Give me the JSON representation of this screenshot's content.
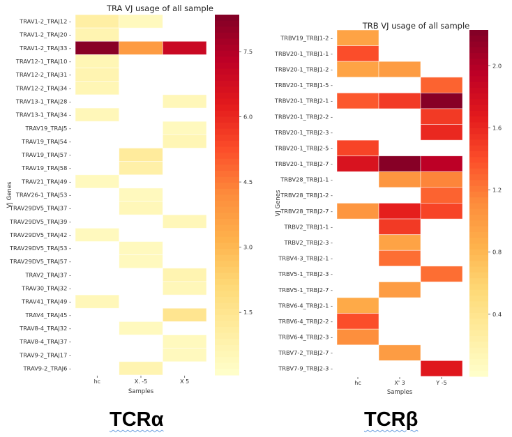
{
  "chart_data": [
    {
      "type": "heatmap",
      "title": "TRA VJ usage of all sample",
      "xlabel": "Samples",
      "ylabel": "VJ Genes",
      "colormap": "YlOrRd",
      "color_range": [
        0.06,
        8.35
      ],
      "colorbar_ticks": [
        1.5,
        3.0,
        4.5,
        6.0,
        7.5
      ],
      "colorbar_tick_labels": [
        "1.5",
        "3.0",
        "4.5",
        "6.0",
        "7.5"
      ],
      "columns": [
        "hc",
        "X.      -5",
        "X       5"
      ],
      "rows": [
        "TRAV1-2_TRAJ12",
        "TRAV1-2_TRAJ20",
        "TRAV1-2_TRAJ33",
        "TRAV12-1_TRAJ10",
        "TRAV12-2_TRAJ31",
        "TRAV12-2_TRAJ34",
        "TRAV13-1_TRAJ28",
        "TRAV13-1_TRAJ34",
        "TRAV19_TRAJ5",
        "TRAV19_TRAJ54",
        "TRAV19_TRAJ57",
        "TRAV19_TRAJ58",
        "TRAV21_TRAJ49",
        "TRAV26-1_TRAJ53",
        "TRAV29DV5_TRAJ37",
        "TRAV29DV5_TRAJ39",
        "TRAV29DV5_TRAJ42",
        "TRAV29DV5_TRAJ53",
        "TRAV29DV5_TRAJ57",
        "TRAV2_TRAJ37",
        "TRAV30_TRAJ32",
        "TRAV41_TRAJ49",
        "TRAV4_TRAJ45",
        "TRAV8-4_TRAJ32",
        "TRAV8-4_TRAJ37",
        "TRAV9-2_TRAJ17",
        "TRAV9-2_TRAJ6"
      ],
      "values": [
        [
          1.0,
          0.4,
          null
        ],
        [
          0.7,
          null,
          null
        ],
        [
          8.2,
          3.8,
          7.0
        ],
        [
          0.6,
          null,
          null
        ],
        [
          0.7,
          null,
          null
        ],
        [
          0.6,
          null,
          null
        ],
        [
          null,
          null,
          0.5
        ],
        [
          0.5,
          null,
          null
        ],
        [
          null,
          null,
          0.4
        ],
        [
          null,
          null,
          0.6
        ],
        [
          null,
          1.2,
          null
        ],
        [
          null,
          0.9,
          null
        ],
        [
          0.4,
          null,
          null
        ],
        [
          null,
          0.4,
          null
        ],
        [
          null,
          0.5,
          null
        ],
        [
          null,
          null,
          0.5
        ],
        [
          0.4,
          null,
          null
        ],
        [
          null,
          0.4,
          null
        ],
        [
          null,
          0.4,
          null
        ],
        [
          null,
          null,
          0.7
        ],
        [
          null,
          null,
          0.5
        ],
        [
          0.5,
          null,
          null
        ],
        [
          null,
          null,
          1.5
        ],
        [
          null,
          0.4,
          null
        ],
        [
          null,
          null,
          0.4
        ],
        [
          null,
          null,
          0.4
        ],
        [
          null,
          0.7,
          null
        ]
      ]
    },
    {
      "type": "heatmap",
      "title": "TRB VJ usage of all sample",
      "xlabel": "Samples",
      "ylabel": "VJ Genes",
      "colormap": "YlOrRd",
      "color_range": [
        0.0,
        2.23
      ],
      "colorbar_ticks": [
        0.4,
        0.8,
        1.2,
        1.6,
        2.0
      ],
      "colorbar_tick_labels": [
        "0.4",
        "0.8",
        "1.2",
        "1.6",
        "2.0"
      ],
      "columns": [
        "hc",
        "X'      3",
        "Y      -5"
      ],
      "rows": [
        "TRBV19_TRBJ1-2",
        "TRBV20-1_TRBJ1-1",
        "TRBV20-1_TRBJ1-2",
        "TRBV20-1_TRBJ1-5",
        "TRBV20-1_TRBJ2-1",
        "TRBV20-1_TRBJ2-2",
        "TRBV20-1_TRBJ2-3",
        "TRBV20-1_TRBJ2-5",
        "TRBV20-1_TRBJ2-7",
        "TRBV28_TRBJ1-1",
        "TRBV28_TRBJ1-2",
        "TRBV28_TRBJ2-7",
        "TRBV2_TRBJ1-1",
        "TRBV2_TRBJ2-3",
        "TRBV4-3_TRBJ2-1",
        "TRBV5-1_TRBJ2-3",
        "TRBV5-1_TRBJ2-7",
        "TRBV6-4_TRBJ2-1",
        "TRBV6-4_TRBJ2-2",
        "TRBV6-4_TRBJ2-3",
        "TRBV7-2_TRBJ2-7",
        "TRBV7-9_TRBJ2-3"
      ],
      "values": [
        [
          0.95,
          null,
          null
        ],
        [
          1.4,
          null,
          null
        ],
        [
          0.95,
          1.0,
          null
        ],
        [
          null,
          null,
          1.3
        ],
        [
          1.35,
          1.5,
          2.2
        ],
        [
          null,
          null,
          1.5
        ],
        [
          null,
          null,
          1.6
        ],
        [
          1.45,
          null,
          null
        ],
        [
          1.75,
          2.2,
          1.95
        ],
        [
          null,
          1.05,
          1.15
        ],
        [
          null,
          null,
          1.3
        ],
        [
          1.05,
          1.65,
          1.45
        ],
        [
          null,
          1.5,
          null
        ],
        [
          null,
          0.95,
          null
        ],
        [
          null,
          1.25,
          null
        ],
        [
          null,
          null,
          1.25
        ],
        [
          null,
          1.0,
          null
        ],
        [
          0.9,
          null,
          null
        ],
        [
          1.4,
          null,
          null
        ],
        [
          1.1,
          null,
          null
        ],
        [
          null,
          1.0,
          null
        ],
        [
          null,
          null,
          1.7
        ]
      ]
    }
  ],
  "captions": {
    "left": "TCRα",
    "right": "TCRβ"
  }
}
